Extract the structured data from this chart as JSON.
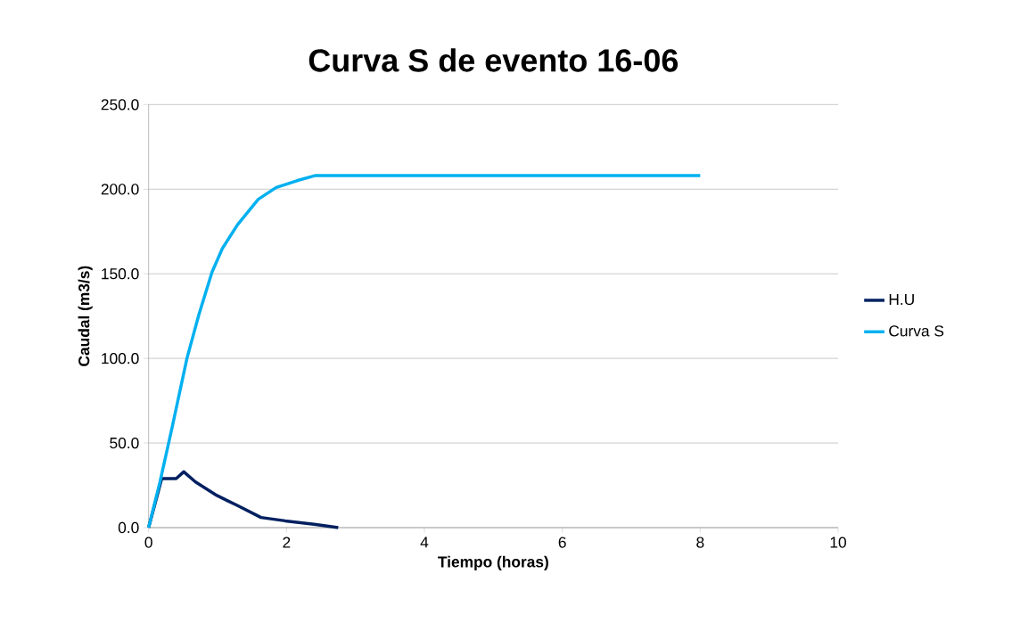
{
  "chart_data": {
    "type": "line",
    "title": "Curva S de evento 16-06",
    "xlabel": "Tiempo (horas)",
    "ylabel": "Caudal (m3/s)",
    "xlim": [
      0,
      10
    ],
    "xticks": [
      0,
      2,
      4,
      6,
      8,
      10
    ],
    "ylim": [
      0,
      250
    ],
    "yticks": [
      {
        "value": 0,
        "label": "0.0"
      },
      {
        "value": 50,
        "label": "50.0"
      },
      {
        "value": 100,
        "label": "100.0"
      },
      {
        "value": 150,
        "label": "150.0"
      },
      {
        "value": 200,
        "label": "200.0"
      },
      {
        "value": 250,
        "label": "250.0"
      }
    ],
    "grid": "y",
    "legend": "right",
    "marker": "none",
    "line_style": "solid",
    "series": [
      {
        "name": "H.U",
        "color": "#002060",
        "x": [
          0,
          0.19,
          0.4,
          0.51,
          0.68,
          0.99,
          1.29,
          1.63,
          1.98,
          2.4,
          2.75
        ],
        "values": [
          0,
          29,
          29,
          33,
          27,
          19,
          13,
          6,
          4,
          2,
          0
        ]
      },
      {
        "name": "Curva S",
        "color": "#00b0f0",
        "x": [
          0,
          0.165,
          0.34,
          0.556,
          0.73,
          0.92,
          1.07,
          1.29,
          1.59,
          1.85,
          2.15,
          2.41,
          3,
          4,
          5,
          6,
          7,
          8
        ],
        "values": [
          0,
          27,
          59,
          100,
          126,
          151,
          165,
          179,
          194,
          201,
          205,
          208,
          208,
          208,
          208,
          208,
          208,
          208
        ]
      }
    ]
  }
}
